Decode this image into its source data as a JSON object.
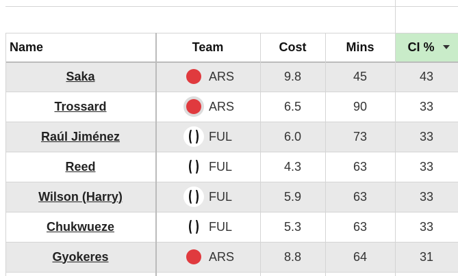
{
  "table": {
    "header": [
      "Name",
      "Team",
      "Cost",
      "Mins",
      "CI %"
    ],
    "rows": [
      [
        "Saka",
        "ARS",
        "9.8",
        "45",
        "43"
      ],
      [
        "Trossard",
        "ARS",
        "6.5",
        "90",
        "33"
      ],
      [
        "Raúl Jiménez",
        "FUL",
        "6.0",
        "73",
        "33"
      ],
      [
        "Reed",
        "FUL",
        "4.3",
        "63",
        "33"
      ],
      [
        "Wilson (Harry)",
        "FUL",
        "5.9",
        "63",
        "33"
      ],
      [
        "Chukwueze",
        "FUL",
        "5.3",
        "63",
        "33"
      ],
      [
        "Gyokeres",
        "ARS",
        "8.8",
        "64",
        "31"
      ]
    ]
  }
}
